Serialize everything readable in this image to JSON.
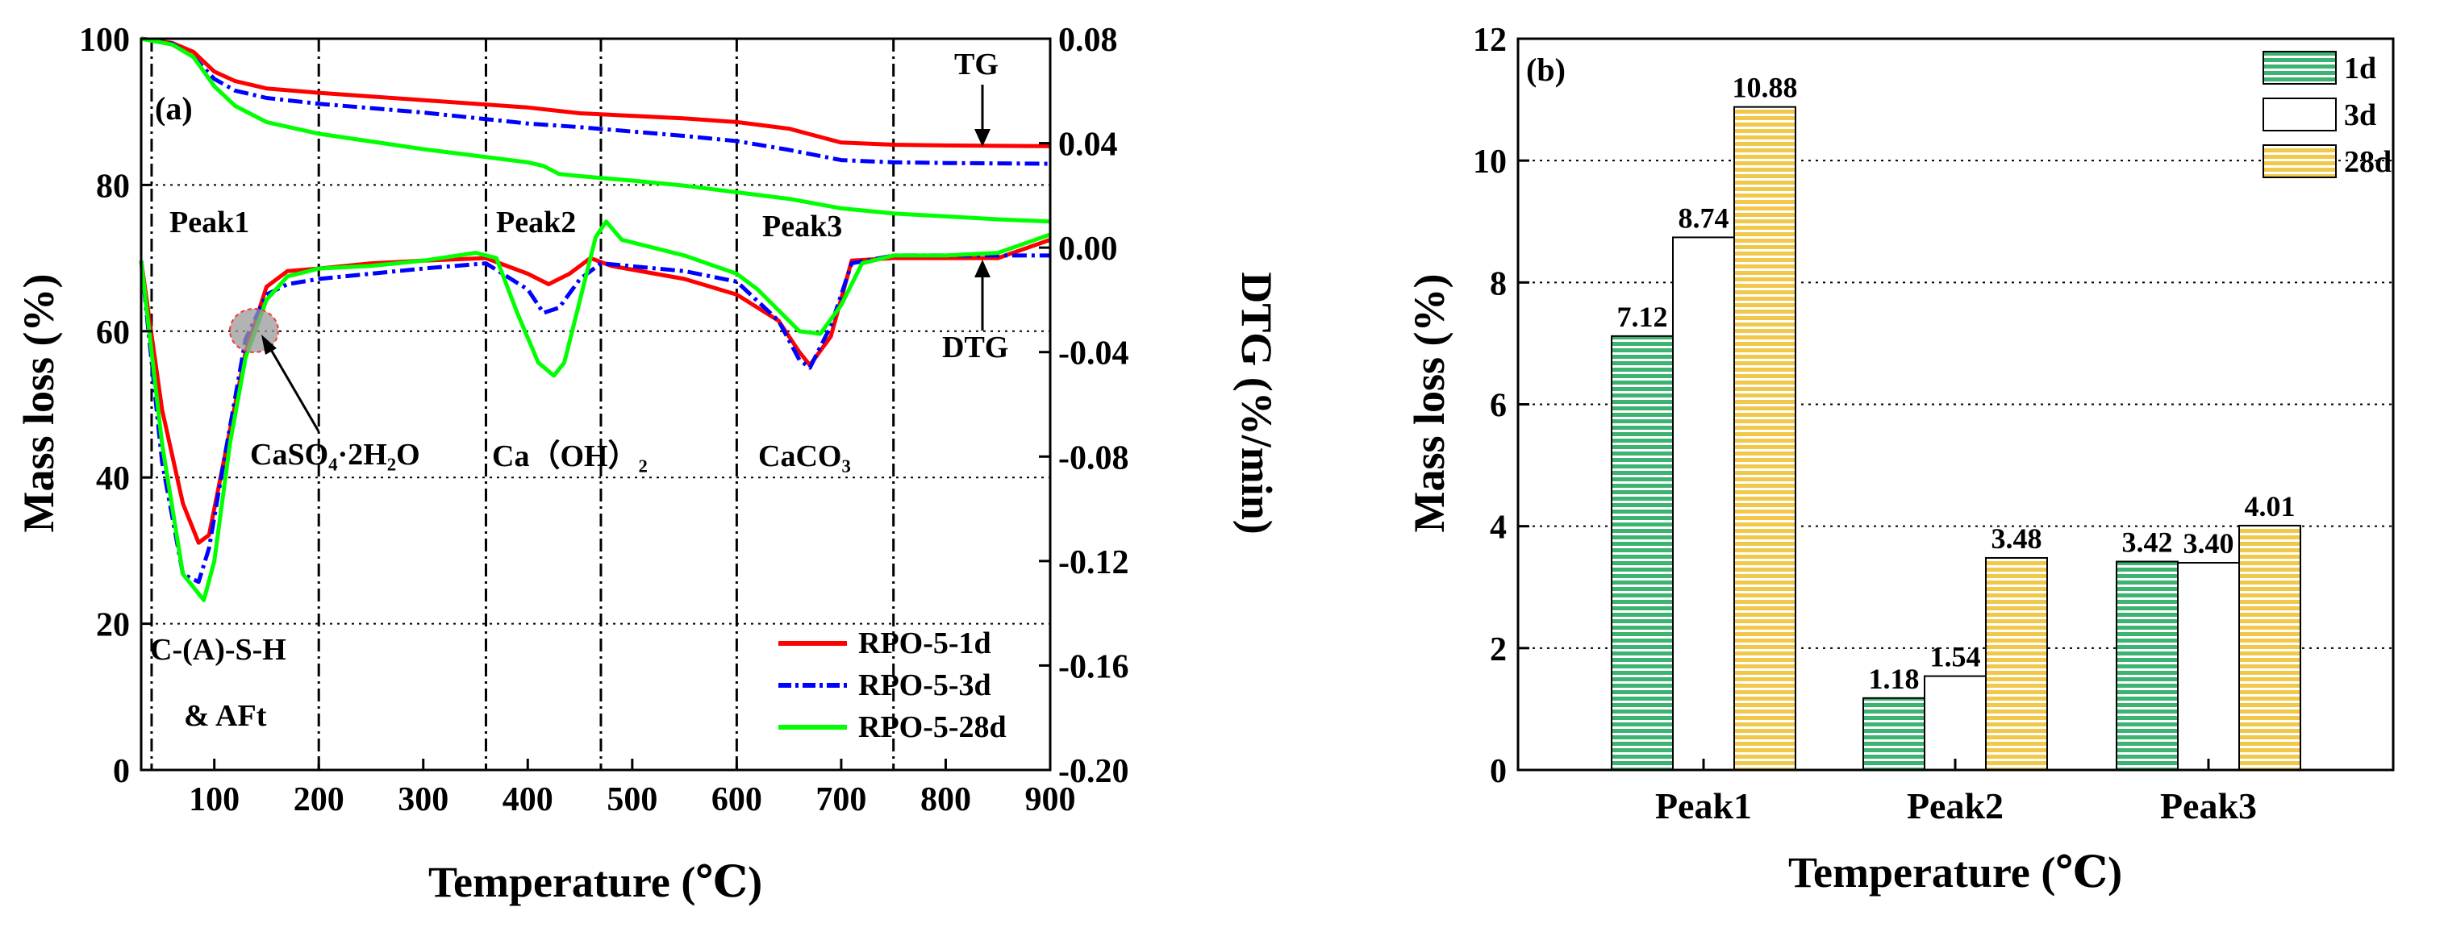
{
  "chart_data": [
    {
      "panel_label": "(a)",
      "type": "line",
      "xlabel": "Temperature (℃)",
      "ylabel_left": "Mass loss (%)",
      "ylabel_right": "DTG (%/min)",
      "xlim": [
        30,
        900
      ],
      "ylim_left": [
        0,
        100
      ],
      "ylim_right": [
        -0.2,
        0.08
      ],
      "x_ticks": [
        "100",
        "200",
        "300",
        "400",
        "500",
        "600",
        "700",
        "800",
        "900"
      ],
      "y_ticks_left": [
        "0",
        "20",
        "40",
        "60",
        "80",
        "100"
      ],
      "y_ticks_right": [
        "-0.20",
        "-0.16",
        "-0.12",
        "-0.08",
        "-0.04",
        "0.00",
        "0.04",
        "0.08"
      ],
      "vlines": [
        40,
        200,
        360,
        470,
        600,
        750
      ],
      "grid": "dotted horizontal",
      "annotations": {
        "peak1": "Peak1",
        "peak2": "Peak2",
        "peak3": "Peak3",
        "csh": "C-(A)-S-H",
        "aft": "& AFt",
        "gypsum": "CaSO₄·2H₂O",
        "ch": "Ca（OH）₂",
        "cc": "CaCO₃",
        "tg": "TG",
        "dtg": "DTG"
      },
      "legend": [
        "RPO-5-1d",
        "RPO-5-3d",
        "RPO-5-28d"
      ],
      "series_colors": [
        "#ff0000",
        "#0000ff",
        "#00ff00"
      ],
      "series_tg": [
        {
          "name": "RPO-5-1d",
          "x": [
            30,
            60,
            80,
            100,
            120,
            150,
            200,
            300,
            400,
            450,
            550,
            600,
            650,
            700,
            750,
            800,
            900
          ],
          "y": [
            100,
            99.4,
            98.2,
            95.5,
            94.2,
            93.2,
            92.6,
            91.6,
            90.6,
            89.8,
            89.1,
            88.6,
            87.7,
            85.8,
            85.5,
            85.4,
            85.3
          ]
        },
        {
          "name": "RPO-5-3d",
          "x": [
            30,
            60,
            80,
            100,
            120,
            150,
            200,
            300,
            400,
            450,
            550,
            600,
            650,
            700,
            750,
            800,
            900
          ],
          "y": [
            100,
            99.3,
            97.5,
            94.5,
            92.9,
            91.9,
            91.1,
            89.9,
            88.4,
            87.9,
            86.7,
            86.0,
            84.8,
            83.4,
            83.1,
            83.0,
            82.9
          ]
        },
        {
          "name": "RPO-5-28d",
          "x": [
            30,
            60,
            80,
            100,
            120,
            150,
            200,
            300,
            400,
            415,
            430,
            450,
            500,
            550,
            600,
            650,
            700,
            750,
            800,
            850,
            900
          ],
          "y": [
            100,
            99.2,
            97.5,
            93.5,
            90.8,
            88.6,
            87.0,
            84.9,
            83.1,
            82.6,
            81.5,
            81.2,
            80.6,
            79.9,
            79.0,
            78.1,
            76.8,
            76.1,
            75.7,
            75.3,
            75.0
          ]
        }
      ],
      "series_dtg": [
        {
          "name": "RPO-5-1d",
          "x": [
            30,
            50,
            70,
            85,
            95,
            110,
            130,
            150,
            170,
            200,
            250,
            300,
            360,
            400,
            420,
            440,
            460,
            480,
            550,
            600,
            640,
            660,
            670,
            690,
            710,
            750,
            800,
            850,
            900
          ],
          "y": [
            -0.005,
            -0.062,
            -0.098,
            -0.113,
            -0.11,
            -0.08,
            -0.04,
            -0.015,
            -0.009,
            -0.008,
            -0.006,
            -0.005,
            -0.004,
            -0.01,
            -0.014,
            -0.01,
            -0.004,
            -0.007,
            -0.012,
            -0.018,
            -0.028,
            -0.04,
            -0.045,
            -0.034,
            -0.005,
            -0.004,
            -0.004,
            -0.004,
            0.003
          ]
        },
        {
          "name": "RPO-5-3d",
          "x": [
            30,
            50,
            70,
            85,
            95,
            110,
            130,
            150,
            170,
            200,
            250,
            300,
            360,
            400,
            415,
            430,
            450,
            470,
            550,
            600,
            640,
            660,
            670,
            690,
            710,
            750,
            800,
            850,
            900
          ],
          "y": [
            -0.005,
            -0.082,
            -0.125,
            -0.128,
            -0.115,
            -0.08,
            -0.035,
            -0.018,
            -0.014,
            -0.012,
            -0.01,
            -0.008,
            -0.006,
            -0.016,
            -0.025,
            -0.023,
            -0.012,
            -0.006,
            -0.009,
            -0.013,
            -0.028,
            -0.043,
            -0.046,
            -0.03,
            -0.006,
            -0.003,
            -0.003,
            -0.003,
            -0.003
          ]
        },
        {
          "name": "RPO-5-28d",
          "x": [
            30,
            50,
            70,
            90,
            100,
            115,
            130,
            150,
            170,
            200,
            250,
            300,
            350,
            370,
            390,
            410,
            425,
            435,
            450,
            465,
            475,
            490,
            550,
            600,
            620,
            640,
            660,
            680,
            700,
            720,
            750,
            800,
            850,
            900
          ],
          "y": [
            -0.005,
            -0.075,
            -0.125,
            -0.135,
            -0.12,
            -0.075,
            -0.042,
            -0.02,
            -0.011,
            -0.008,
            -0.007,
            -0.005,
            -0.002,
            -0.004,
            -0.025,
            -0.044,
            -0.049,
            -0.044,
            -0.02,
            0.004,
            0.01,
            0.003,
            -0.003,
            -0.01,
            -0.016,
            -0.024,
            -0.032,
            -0.033,
            -0.022,
            -0.006,
            -0.003,
            -0.003,
            -0.002,
            0.005
          ]
        }
      ]
    },
    {
      "panel_label": "(b)",
      "type": "bar",
      "xlabel": "Temperature (℃)",
      "ylabel": "Mass loss (%)",
      "ylim": [
        0,
        12
      ],
      "y_ticks": [
        "0",
        "2",
        "4",
        "6",
        "8",
        "10",
        "12"
      ],
      "categories": [
        "Peak1",
        "Peak2",
        "Peak3"
      ],
      "series": [
        {
          "name": "1d",
          "values": [
            7.12,
            1.18,
            3.42
          ],
          "labels": [
            "7.12",
            "1.18",
            "3.42"
          ]
        },
        {
          "name": "3d",
          "values": [
            8.74,
            1.54,
            3.4
          ],
          "labels": [
            "8.74",
            "1.54",
            "3.40"
          ]
        },
        {
          "name": "28d",
          "values": [
            10.88,
            3.48,
            4.01
          ],
          "labels": [
            "10.88",
            "3.48",
            "4.01"
          ]
        }
      ],
      "series_colors": [
        "#3cb371",
        "#ffffff",
        "#f2c84b"
      ],
      "grid": "dotted horizontal",
      "legend_position": "top-right"
    }
  ]
}
